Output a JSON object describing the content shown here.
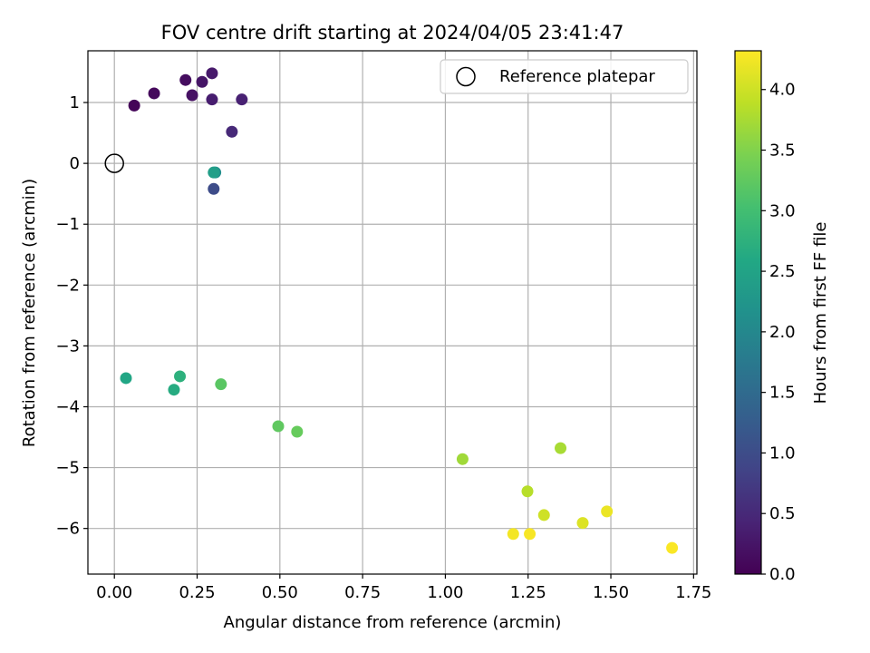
{
  "chart_data": {
    "type": "scatter",
    "title": "FOV centre drift starting at 2024/04/05 23:41:47",
    "xlabel": "Angular distance from reference (arcmin)",
    "ylabel": "Rotation from reference (arcmin)",
    "xlim": [
      -0.08,
      1.76
    ],
    "ylim": [
      -6.75,
      1.85
    ],
    "xticks": [
      0.0,
      0.25,
      0.5,
      0.75,
      1.0,
      1.25,
      1.5,
      1.75
    ],
    "xtick_labels": [
      "0.00",
      "0.25",
      "0.50",
      "0.75",
      "1.00",
      "1.25",
      "1.50",
      "1.75"
    ],
    "yticks": [
      1,
      0,
      -1,
      -2,
      -3,
      -4,
      -5,
      -6
    ],
    "ytick_labels": [
      "1",
      "0",
      "−1",
      "−2",
      "−3",
      "−4",
      "−5",
      "−6"
    ],
    "grid": true,
    "colormap": "viridis",
    "colorbar": {
      "label": "Hours from first FF file",
      "range": [
        0.0,
        4.32
      ],
      "ticks": [
        0.0,
        0.5,
        1.0,
        1.5,
        2.0,
        2.5,
        3.0,
        3.5,
        4.0
      ],
      "tick_labels": [
        "0.0",
        "0.5",
        "1.0",
        "1.5",
        "2.0",
        "2.5",
        "3.0",
        "3.5",
        "4.0"
      ]
    },
    "legend": {
      "position": "top-right",
      "entries": [
        {
          "label": "Reference platepar",
          "marker": "open-circle"
        }
      ]
    },
    "reference_point": {
      "x": 0.0,
      "y": 0.0
    },
    "points": [
      {
        "x": 0.06,
        "y": 0.95,
        "hours": 0.05
      },
      {
        "x": 0.12,
        "y": 1.15,
        "hours": 0.1
      },
      {
        "x": 0.215,
        "y": 1.37,
        "hours": 0.15
      },
      {
        "x": 0.235,
        "y": 1.12,
        "hours": 0.2
      },
      {
        "x": 0.265,
        "y": 1.34,
        "hours": 0.25
      },
      {
        "x": 0.295,
        "y": 1.48,
        "hours": 0.3
      },
      {
        "x": 0.295,
        "y": 1.05,
        "hours": 0.35
      },
      {
        "x": 0.385,
        "y": 1.05,
        "hours": 0.4
      },
      {
        "x": 0.355,
        "y": 0.52,
        "hours": 0.5
      },
      {
        "x": 0.3,
        "y": -0.42,
        "hours": 1.0
      },
      {
        "x": 0.305,
        "y": -0.15,
        "hours": 2.1
      },
      {
        "x": 0.3,
        "y": -0.15,
        "hours": 2.4
      },
      {
        "x": 0.035,
        "y": -3.53,
        "hours": 2.55
      },
      {
        "x": 0.18,
        "y": -3.72,
        "hours": 2.65
      },
      {
        "x": 0.198,
        "y": -3.5,
        "hours": 2.75
      },
      {
        "x": 0.322,
        "y": -3.63,
        "hours": 3.2
      },
      {
        "x": 0.495,
        "y": -4.32,
        "hours": 3.25
      },
      {
        "x": 0.552,
        "y": -4.41,
        "hours": 3.3
      },
      {
        "x": 1.052,
        "y": -4.86,
        "hours": 3.7
      },
      {
        "x": 1.348,
        "y": -4.68,
        "hours": 3.75
      },
      {
        "x": 1.248,
        "y": -5.39,
        "hours": 3.85
      },
      {
        "x": 1.298,
        "y": -5.78,
        "hours": 4.0
      },
      {
        "x": 1.415,
        "y": -5.91,
        "hours": 4.1
      },
      {
        "x": 1.488,
        "y": -5.72,
        "hours": 4.2
      },
      {
        "x": 1.205,
        "y": -6.09,
        "hours": 4.25
      },
      {
        "x": 1.255,
        "y": -6.09,
        "hours": 4.28
      },
      {
        "x": 1.685,
        "y": -6.32,
        "hours": 4.3
      }
    ]
  }
}
